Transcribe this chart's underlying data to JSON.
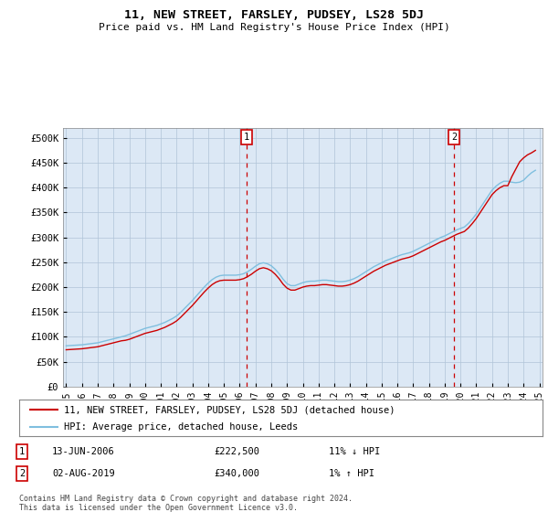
{
  "title": "11, NEW STREET, FARSLEY, PUDSEY, LS28 5DJ",
  "subtitle": "Price paid vs. HM Land Registry's House Price Index (HPI)",
  "plot_bg_color": "#dce8f5",
  "ylim": [
    0,
    520000
  ],
  "yticks": [
    0,
    50000,
    100000,
    150000,
    200000,
    250000,
    300000,
    350000,
    400000,
    450000,
    500000
  ],
  "ytick_labels": [
    "£0",
    "£50K",
    "£100K",
    "£150K",
    "£200K",
    "£250K",
    "£300K",
    "£350K",
    "£400K",
    "£450K",
    "£500K"
  ],
  "hpi_color": "#7fbfdf",
  "price_color": "#cc0000",
  "vline_color": "#cc0000",
  "legend_label_price": "11, NEW STREET, FARSLEY, PUDSEY, LS28 5DJ (detached house)",
  "legend_label_hpi": "HPI: Average price, detached house, Leeds",
  "annotation1": {
    "number": "1",
    "date": "13-JUN-2006",
    "price": "£222,500",
    "pct": "11% ↓ HPI",
    "x_year": 2006.45
  },
  "annotation2": {
    "number": "2",
    "date": "02-AUG-2019",
    "price": "£340,000",
    "pct": "1% ↑ HPI",
    "x_year": 2019.58
  },
  "footnote": "Contains HM Land Registry data © Crown copyright and database right 2024.\nThis data is licensed under the Open Government Licence v3.0.",
  "hpi_data": {
    "years": [
      1995.0,
      1995.25,
      1995.5,
      1995.75,
      1996.0,
      1996.25,
      1996.5,
      1996.75,
      1997.0,
      1997.25,
      1997.5,
      1997.75,
      1998.0,
      1998.25,
      1998.5,
      1998.75,
      1999.0,
      1999.25,
      1999.5,
      1999.75,
      2000.0,
      2000.25,
      2000.5,
      2000.75,
      2001.0,
      2001.25,
      2001.5,
      2001.75,
      2002.0,
      2002.25,
      2002.5,
      2002.75,
      2003.0,
      2003.25,
      2003.5,
      2003.75,
      2004.0,
      2004.25,
      2004.5,
      2004.75,
      2005.0,
      2005.25,
      2005.5,
      2005.75,
      2006.0,
      2006.25,
      2006.5,
      2006.75,
      2007.0,
      2007.25,
      2007.5,
      2007.75,
      2008.0,
      2008.25,
      2008.5,
      2008.75,
      2009.0,
      2009.25,
      2009.5,
      2009.75,
      2010.0,
      2010.25,
      2010.5,
      2010.75,
      2011.0,
      2011.25,
      2011.5,
      2011.75,
      2012.0,
      2012.25,
      2012.5,
      2012.75,
      2013.0,
      2013.25,
      2013.5,
      2013.75,
      2014.0,
      2014.25,
      2014.5,
      2014.75,
      2015.0,
      2015.25,
      2015.5,
      2015.75,
      2016.0,
      2016.25,
      2016.5,
      2016.75,
      2017.0,
      2017.25,
      2017.5,
      2017.75,
      2018.0,
      2018.25,
      2018.5,
      2018.75,
      2019.0,
      2019.25,
      2019.5,
      2019.75,
      2020.0,
      2020.25,
      2020.5,
      2020.75,
      2021.0,
      2021.25,
      2021.5,
      2021.75,
      2022.0,
      2022.25,
      2022.5,
      2022.75,
      2023.0,
      2023.25,
      2023.5,
      2023.75,
      2024.0,
      2024.25,
      2024.5,
      2024.75
    ],
    "values": [
      82000,
      82500,
      83000,
      83500,
      84000,
      85000,
      86000,
      87000,
      88000,
      90000,
      92000,
      94000,
      96000,
      98000,
      100000,
      102000,
      105000,
      108000,
      111000,
      114000,
      117000,
      119000,
      121000,
      123000,
      126000,
      129000,
      133000,
      137000,
      142000,
      149000,
      157000,
      165000,
      173000,
      182000,
      191000,
      200000,
      208000,
      215000,
      220000,
      223000,
      224000,
      224000,
      224000,
      224000,
      225000,
      227000,
      231000,
      236000,
      242000,
      247000,
      249000,
      247000,
      243000,
      236000,
      227000,
      216000,
      207000,
      203000,
      203000,
      206000,
      209000,
      211000,
      212000,
      212000,
      213000,
      214000,
      214000,
      213000,
      212000,
      211000,
      211000,
      212000,
      214000,
      217000,
      221000,
      226000,
      231000,
      236000,
      241000,
      245000,
      249000,
      253000,
      256000,
      259000,
      262000,
      265000,
      267000,
      269000,
      272000,
      276000,
      280000,
      284000,
      288000,
      292000,
      296000,
      300000,
      303000,
      307000,
      311000,
      315000,
      318000,
      321000,
      328000,
      337000,
      347000,
      359000,
      371000,
      383000,
      395000,
      403000,
      409000,
      413000,
      413000,
      411000,
      410000,
      411000,
      415000,
      423000,
      430000,
      435000
    ]
  },
  "price_data": {
    "years": [
      1995.0,
      1995.25,
      1995.5,
      1995.75,
      1996.0,
      1996.25,
      1996.5,
      1996.75,
      1997.0,
      1997.25,
      1997.5,
      1997.75,
      1998.0,
      1998.25,
      1998.5,
      1998.75,
      1999.0,
      1999.25,
      1999.5,
      1999.75,
      2000.0,
      2000.25,
      2000.5,
      2000.75,
      2001.0,
      2001.25,
      2001.5,
      2001.75,
      2002.0,
      2002.25,
      2002.5,
      2002.75,
      2003.0,
      2003.25,
      2003.5,
      2003.75,
      2004.0,
      2004.25,
      2004.5,
      2004.75,
      2005.0,
      2005.25,
      2005.5,
      2005.75,
      2006.0,
      2006.25,
      2006.5,
      2006.75,
      2007.0,
      2007.25,
      2007.5,
      2007.75,
      2008.0,
      2008.25,
      2008.5,
      2008.75,
      2009.0,
      2009.25,
      2009.5,
      2009.75,
      2010.0,
      2010.25,
      2010.5,
      2010.75,
      2011.0,
      2011.25,
      2011.5,
      2011.75,
      2012.0,
      2012.25,
      2012.5,
      2012.75,
      2013.0,
      2013.25,
      2013.5,
      2013.75,
      2014.0,
      2014.25,
      2014.5,
      2014.75,
      2015.0,
      2015.25,
      2015.5,
      2015.75,
      2016.0,
      2016.25,
      2016.5,
      2016.75,
      2017.0,
      2017.25,
      2017.5,
      2017.75,
      2018.0,
      2018.25,
      2018.5,
      2018.75,
      2019.0,
      2019.25,
      2019.5,
      2019.75,
      2020.0,
      2020.25,
      2020.5,
      2020.75,
      2021.0,
      2021.25,
      2021.5,
      2021.75,
      2022.0,
      2022.25,
      2022.5,
      2022.75,
      2023.0,
      2023.25,
      2023.5,
      2023.75,
      2024.0,
      2024.25,
      2024.5,
      2024.75
    ],
    "values": [
      74000,
      74500,
      75000,
      75500,
      76000,
      77000,
      78000,
      79000,
      80000,
      82000,
      84000,
      86000,
      88000,
      90000,
      92000,
      93000,
      95000,
      98000,
      101000,
      104000,
      107000,
      109000,
      111000,
      113000,
      116000,
      119000,
      123000,
      127000,
      132000,
      139000,
      147000,
      155000,
      163000,
      172000,
      181000,
      190000,
      198000,
      205000,
      210000,
      213000,
      214000,
      214000,
      214000,
      214000,
      215000,
      217000,
      221000,
      226000,
      232000,
      237000,
      239000,
      237000,
      233000,
      226000,
      217000,
      206000,
      198000,
      194000,
      194000,
      197000,
      200000,
      202000,
      203000,
      203000,
      204000,
      205000,
      205000,
      204000,
      203000,
      202000,
      202000,
      203000,
      205000,
      208000,
      212000,
      217000,
      222000,
      227000,
      232000,
      236000,
      240000,
      244000,
      247000,
      250000,
      253000,
      256000,
      258000,
      260000,
      263000,
      267000,
      271000,
      275000,
      279000,
      283000,
      287000,
      291000,
      294000,
      298000,
      302000,
      306000,
      309000,
      312000,
      319000,
      328000,
      338000,
      350000,
      362000,
      374000,
      386000,
      394000,
      400000,
      404000,
      404000,
      422000,
      437000,
      452000,
      460000,
      466000,
      470000,
      475000
    ]
  },
  "xtick_years": [
    1995,
    1996,
    1997,
    1998,
    1999,
    2000,
    2001,
    2002,
    2003,
    2004,
    2005,
    2006,
    2007,
    2008,
    2009,
    2010,
    2011,
    2012,
    2013,
    2014,
    2015,
    2016,
    2017,
    2018,
    2019,
    2020,
    2021,
    2022,
    2023,
    2024,
    2025
  ]
}
